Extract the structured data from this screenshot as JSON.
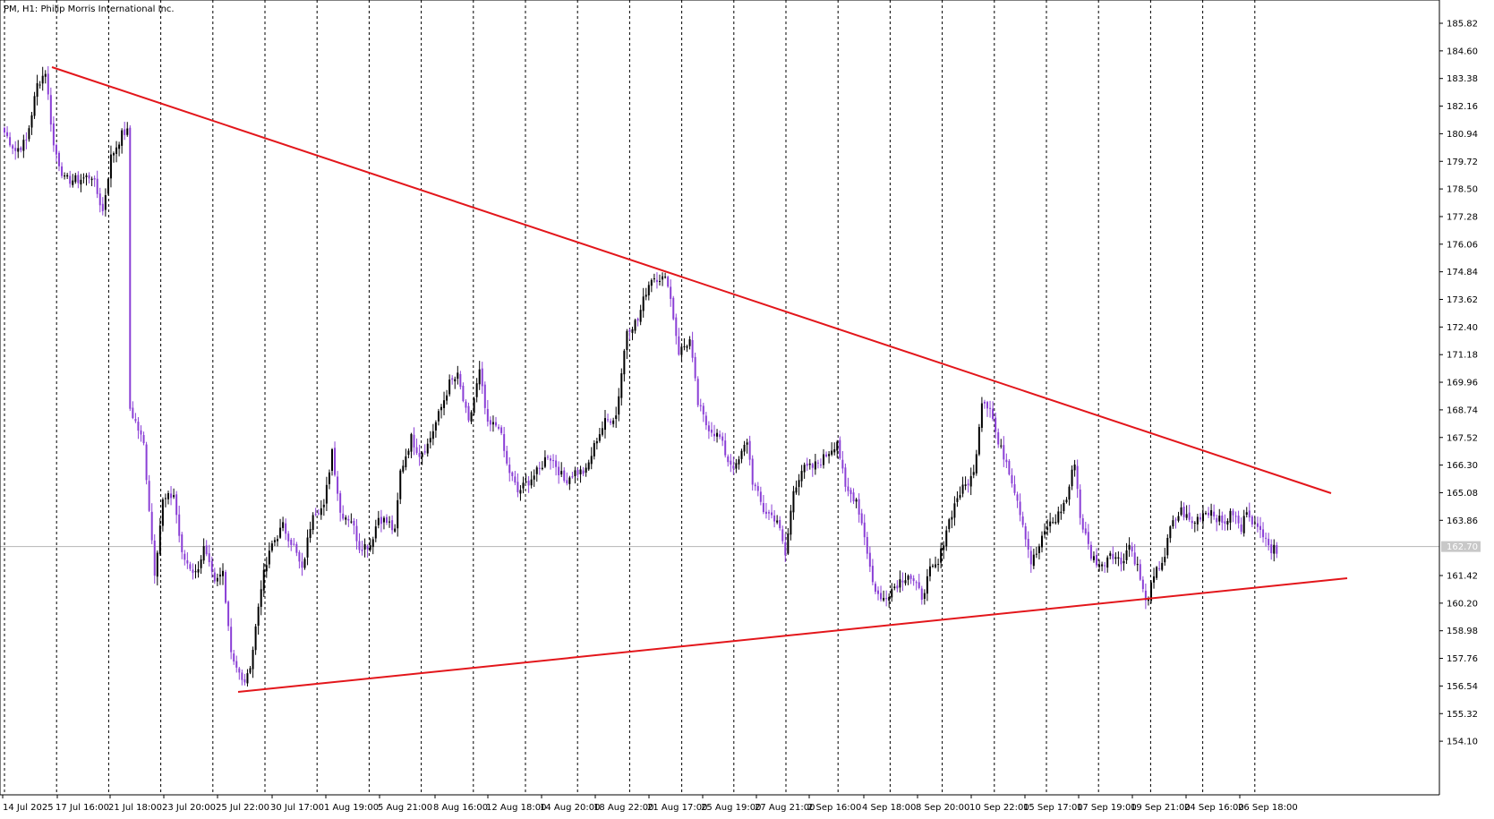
{
  "window": {
    "title": "PM, H1:  Philip Morris International Inc."
  },
  "colors": {
    "background": "#ffffff",
    "grid": "#000000",
    "bull_candle": "#000000",
    "bear_candle": "#8a3fd6",
    "trendline": "#e3161b",
    "price_line": "#b5b5b5",
    "price_label_bg": "#c8c8c8"
  },
  "chart_data": {
    "type": "candlestick",
    "symbol": "PM",
    "timeframe": "H1",
    "instrument": "Philip Morris International Inc.",
    "y_axis_labels": [
      "185.82",
      "184.60",
      "183.38",
      "182.16",
      "180.94",
      "179.72",
      "178.50",
      "177.28",
      "176.06",
      "174.84",
      "173.62",
      "172.40",
      "171.18",
      "169.96",
      "168.74",
      "167.52",
      "166.30",
      "165.08",
      "163.86",
      "161.42",
      "160.20",
      "158.98",
      "157.76",
      "156.54",
      "155.32",
      "154.10"
    ],
    "ylim": [
      153.6,
      186.4
    ],
    "current_price": "162.70",
    "x_axis_labels": [
      "14 Jul 2025",
      "17 Jul 16:00",
      "21 Jul 18:00",
      "23 Jul 20:00",
      "25 Jul 22:00",
      "30 Jul 17:00",
      "1 Aug 19:00",
      "5 Aug 21:00",
      "8 Aug 16:00",
      "12 Aug 18:00",
      "14 Aug 20:00",
      "18 Aug 22:00",
      "21 Aug 17:00",
      "25 Aug 19:00",
      "27 Aug 21:00",
      "2 Sep 16:00",
      "4 Sep 18:00",
      "8 Sep 20:00",
      "10 Sep 22:00",
      "15 Sep 17:00",
      "17 Sep 19:00",
      "19 Sep 21:00",
      "24 Sep 16:00",
      "26 Sep 18:00"
    ],
    "grid": "vertical dashed",
    "price_anchors": [
      [
        0,
        181.0
      ],
      [
        4,
        180.2
      ],
      [
        8,
        180.6
      ],
      [
        12,
        183.1
      ],
      [
        15,
        183.7
      ],
      [
        18,
        180.4
      ],
      [
        22,
        178.9
      ],
      [
        27,
        178.9
      ],
      [
        32,
        179.1
      ],
      [
        36,
        177.5
      ],
      [
        39,
        179.9
      ],
      [
        43,
        180.9
      ],
      [
        44,
        181.0
      ],
      [
        45,
        181.0
      ],
      [
        46,
        168.8
      ],
      [
        48,
        168.2
      ],
      [
        51,
        167.2
      ],
      [
        55,
        161.6
      ],
      [
        58,
        164.7
      ],
      [
        62,
        165.0
      ],
      [
        65,
        162.3
      ],
      [
        70,
        161.5
      ],
      [
        73,
        162.6
      ],
      [
        77,
        161.0
      ],
      [
        80,
        161.6
      ],
      [
        83,
        158.1
      ],
      [
        87,
        156.7
      ],
      [
        89,
        156.9
      ],
      [
        91,
        158.2
      ],
      [
        94,
        161.0
      ],
      [
        98,
        162.8
      ],
      [
        102,
        163.6
      ],
      [
        106,
        162.7
      ],
      [
        109,
        161.6
      ],
      [
        113,
        164.3
      ],
      [
        117,
        164.4
      ],
      [
        120,
        167.0
      ],
      [
        123,
        164.2
      ],
      [
        127,
        163.9
      ],
      [
        130,
        162.7
      ],
      [
        134,
        162.8
      ],
      [
        137,
        164.0
      ],
      [
        141,
        163.7
      ],
      [
        143,
        163.3
      ],
      [
        145,
        166.0
      ],
      [
        149,
        167.5
      ],
      [
        152,
        166.8
      ],
      [
        155,
        167.2
      ],
      [
        159,
        168.5
      ],
      [
        163,
        169.9
      ],
      [
        166,
        170.2
      ],
      [
        170,
        168.1
      ],
      [
        174,
        170.4
      ],
      [
        177,
        168.0
      ],
      [
        181,
        168.1
      ],
      [
        184,
        166.3
      ],
      [
        188,
        165.1
      ],
      [
        192,
        165.6
      ],
      [
        196,
        166.1
      ],
      [
        199,
        166.8
      ],
      [
        202,
        166.3
      ],
      [
        205,
        165.6
      ],
      [
        209,
        166.0
      ],
      [
        213,
        166.0
      ],
      [
        217,
        167.5
      ],
      [
        220,
        168.2
      ],
      [
        224,
        168.5
      ],
      [
        228,
        172.3
      ],
      [
        232,
        172.7
      ],
      [
        235,
        174.0
      ],
      [
        237,
        174.6
      ],
      [
        240,
        174.6
      ],
      [
        243,
        174.4
      ],
      [
        247,
        171.3
      ],
      [
        251,
        171.8
      ],
      [
        254,
        169.0
      ],
      [
        257,
        168.1
      ],
      [
        262,
        167.5
      ],
      [
        265,
        166.5
      ],
      [
        268,
        166.2
      ],
      [
        272,
        167.4
      ],
      [
        274,
        165.6
      ],
      [
        278,
        164.3
      ],
      [
        283,
        163.9
      ],
      [
        286,
        162.3
      ],
      [
        289,
        165.2
      ],
      [
        292,
        166.1
      ],
      [
        296,
        166.2
      ],
      [
        300,
        166.6
      ],
      [
        304,
        167.2
      ],
      [
        305,
        167.4
      ],
      [
        308,
        165.2
      ],
      [
        312,
        164.8
      ],
      [
        315,
        163.2
      ],
      [
        318,
        161.1
      ],
      [
        321,
        160.3
      ],
      [
        324,
        160.7
      ],
      [
        328,
        161.2
      ],
      [
        331,
        161.5
      ],
      [
        336,
        160.5
      ],
      [
        339,
        161.6
      ],
      [
        342,
        161.9
      ],
      [
        345,
        163.5
      ],
      [
        349,
        164.9
      ],
      [
        352,
        165.4
      ],
      [
        355,
        165.9
      ],
      [
        358,
        169.2
      ],
      [
        361,
        168.9
      ],
      [
        364,
        167.2
      ],
      [
        367,
        166.5
      ],
      [
        371,
        164.8
      ],
      [
        374,
        163.2
      ],
      [
        376,
        162.0
      ],
      [
        378,
        162.4
      ],
      [
        382,
        163.6
      ],
      [
        385,
        163.9
      ],
      [
        389,
        164.8
      ],
      [
        392,
        166.5
      ],
      [
        394,
        164.0
      ],
      [
        398,
        162.3
      ],
      [
        402,
        161.8
      ],
      [
        405,
        162.5
      ],
      [
        409,
        162.0
      ],
      [
        412,
        162.8
      ],
      [
        415,
        161.8
      ],
      [
        418,
        160.2
      ],
      [
        422,
        161.6
      ],
      [
        425,
        162.3
      ],
      [
        427,
        163.5
      ],
      [
        431,
        164.3
      ],
      [
        435,
        163.7
      ],
      [
        439,
        164.2
      ],
      [
        442,
        164.3
      ],
      [
        446,
        163.7
      ],
      [
        450,
        164.2
      ],
      [
        453,
        163.4
      ],
      [
        455,
        164.4
      ],
      [
        459,
        163.4
      ],
      [
        462,
        163.3
      ],
      [
        464,
        162.5
      ],
      [
        466,
        162.6
      ]
    ]
  }
}
